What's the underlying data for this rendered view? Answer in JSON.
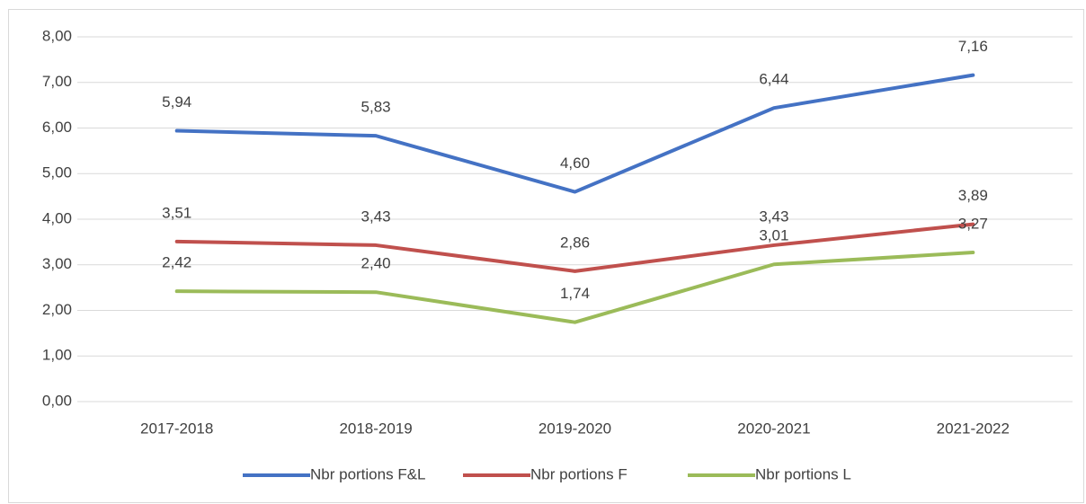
{
  "chart_data": {
    "type": "line",
    "categories": [
      "2017-2018",
      "2018-2019",
      "2019-2020",
      "2020-2021",
      "2021-2022"
    ],
    "series": [
      {
        "name": "Nbr portions F&L",
        "color": "#4472c4",
        "values": [
          5.94,
          5.83,
          4.6,
          6.44,
          7.16
        ],
        "value_labels": [
          "5,94",
          "5,83",
          "4,60",
          "6,44",
          "7,16"
        ]
      },
      {
        "name": "Nbr portions F",
        "color": "#c0504d",
        "values": [
          3.51,
          3.43,
          2.86,
          3.43,
          3.89
        ],
        "value_labels": [
          "3,51",
          "3,43",
          "2,86",
          "3,43",
          "3,89"
        ]
      },
      {
        "name": "Nbr portions L",
        "color": "#9bbb59",
        "values": [
          2.42,
          2.4,
          1.74,
          3.01,
          3.27
        ],
        "value_labels": [
          "2,42",
          "2,40",
          "1,74",
          "3,01",
          "3,27"
        ]
      }
    ],
    "ylim": [
      0,
      8
    ],
    "yticks": [
      {
        "value": 0,
        "label": "0,00"
      },
      {
        "value": 1,
        "label": "1,00"
      },
      {
        "value": 2,
        "label": "2,00"
      },
      {
        "value": 3,
        "label": "3,00"
      },
      {
        "value": 4,
        "label": "4,00"
      },
      {
        "value": 5,
        "label": "5,00"
      },
      {
        "value": 6,
        "label": "6,00"
      },
      {
        "value": 7,
        "label": "7,00"
      },
      {
        "value": 8,
        "label": "8,00"
      }
    ],
    "grid": true,
    "legend": "bottom"
  }
}
